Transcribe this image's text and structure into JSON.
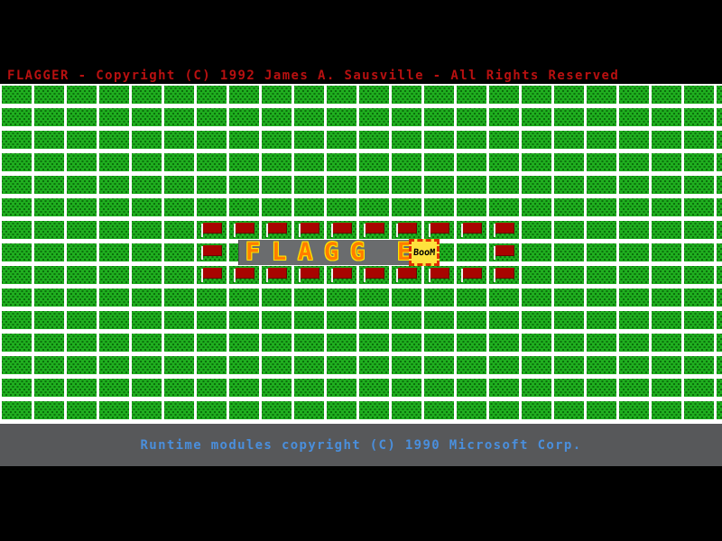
{
  "title_bar": {
    "text": "FLAGGER - Copyright (C) 1992 James A. Sausville - All Rights Reserved"
  },
  "status_bar": {
    "text": "Runtime modules copyright (C) 1990 Microsoft Corp."
  },
  "banner": {
    "visible_text": "FLAGG",
    "letters": [
      "F",
      "L",
      "A",
      "G",
      "G",
      "E"
    ]
  },
  "boom_tile": {
    "label": "BooM"
  },
  "grid": {
    "rows": 15,
    "cols": 23,
    "flags": [
      {
        "row": 6,
        "col": 6
      },
      {
        "row": 6,
        "col": 7
      },
      {
        "row": 6,
        "col": 8
      },
      {
        "row": 6,
        "col": 9
      },
      {
        "row": 6,
        "col": 10
      },
      {
        "row": 6,
        "col": 11
      },
      {
        "row": 6,
        "col": 12
      },
      {
        "row": 6,
        "col": 13
      },
      {
        "row": 6,
        "col": 14
      },
      {
        "row": 6,
        "col": 15
      },
      {
        "row": 7,
        "col": 6
      },
      {
        "row": 7,
        "col": 15
      },
      {
        "row": 8,
        "col": 6
      },
      {
        "row": 8,
        "col": 7
      },
      {
        "row": 8,
        "col": 8
      },
      {
        "row": 8,
        "col": 9
      },
      {
        "row": 8,
        "col": 10
      },
      {
        "row": 8,
        "col": 11
      },
      {
        "row": 8,
        "col": 12
      },
      {
        "row": 8,
        "col": 13
      },
      {
        "row": 8,
        "col": 14
      },
      {
        "row": 8,
        "col": 15
      }
    ]
  },
  "colors": {
    "background": "#000000",
    "gap_white": "#ffffff",
    "tile_green": "#1fae1f",
    "tile_dot": "#0b6f0b",
    "flag_red": "#a80400",
    "pole_white": "#efefef",
    "title_red": "#b81010",
    "banner_gray": "#6a6c6e",
    "letter_fill": "#ff7d00",
    "letter_outline": "#ffe800",
    "boom_bg": "#ffe23d",
    "boom_border": "#e03000",
    "status_bg": "#57585a",
    "status_blue": "#4a8fdd"
  }
}
